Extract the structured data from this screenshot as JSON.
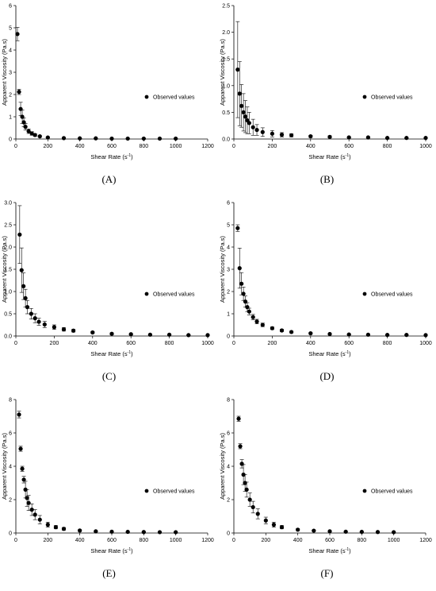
{
  "chart_data": [
    {
      "panel": "A",
      "type": "scatter",
      "caption": "(A)",
      "xlabel": "Shear Rate (s",
      "xlabel_sup": "-1",
      "xlabel_end": ")",
      "ylabel": "Apparent Viscosity (Pa.s)",
      "xlim": [
        0,
        1200
      ],
      "ylim": [
        0,
        6
      ],
      "xticks": [
        "0",
        "200",
        "400",
        "600",
        "800",
        "1000",
        "1200"
      ],
      "yticks": [
        "0",
        "1",
        "2",
        "3",
        "4",
        "5",
        "6"
      ],
      "legend": "Observed values",
      "legend_position": "right-middle",
      "grid": false,
      "series": [
        {
          "name": "Observed values",
          "x": [
            10,
            20,
            30,
            40,
            50,
            60,
            80,
            100,
            120,
            150,
            200,
            300,
            400,
            500,
            600,
            700,
            800,
            900,
            1000
          ],
          "y": [
            4.72,
            2.12,
            1.35,
            1.0,
            0.75,
            0.55,
            0.35,
            0.25,
            0.18,
            0.12,
            0.07,
            0.04,
            0.03,
            0.03,
            0.02,
            0.02,
            0.02,
            0.02,
            0.02
          ],
          "err": [
            0.3,
            0.12,
            0.3,
            0.3,
            0.2,
            0.15,
            0.1,
            0.08,
            0.06,
            0.04,
            0.02,
            0.01,
            0.01,
            0.01,
            0.01,
            0.01,
            0.01,
            0.01,
            0.01
          ]
        }
      ]
    },
    {
      "panel": "B",
      "type": "scatter",
      "caption": "(B)",
      "xlabel": "Shear Rate (s",
      "xlabel_sup": "-1",
      "xlabel_end": ")",
      "ylabel": "Apparent Viscosity (Pa.s)",
      "xlim": [
        0,
        1000
      ],
      "ylim": [
        0,
        2.5
      ],
      "xticks": [
        "0",
        "200",
        "400",
        "600",
        "800",
        "1000"
      ],
      "yticks": [
        "0.0",
        "0.5",
        "1.0",
        "1.5",
        "2.0",
        "2.5"
      ],
      "legend": "Observed values",
      "legend_position": "right-middle",
      "grid": false,
      "series": [
        {
          "name": "Observed values",
          "x": [
            20,
            30,
            40,
            50,
            60,
            70,
            80,
            100,
            120,
            150,
            200,
            250,
            300,
            400,
            500,
            600,
            700,
            800,
            900,
            1000
          ],
          "y": [
            1.3,
            0.85,
            0.62,
            0.5,
            0.42,
            0.35,
            0.3,
            0.22,
            0.17,
            0.13,
            0.1,
            0.08,
            0.07,
            0.05,
            0.04,
            0.03,
            0.03,
            0.02,
            0.02,
            0.02
          ],
          "err": [
            0.9,
            0.6,
            0.4,
            0.35,
            0.3,
            0.25,
            0.2,
            0.15,
            0.1,
            0.08,
            0.06,
            0.04,
            0.03,
            0.02,
            0.02,
            0.01,
            0.01,
            0.01,
            0.01,
            0.01
          ]
        }
      ]
    },
    {
      "panel": "C",
      "type": "scatter",
      "caption": "(C)",
      "xlabel": "Shear Rate (s",
      "xlabel_sup": "-1",
      "xlabel_end": ")",
      "ylabel": "Apparent Viscosity (Pa.s)",
      "xlim": [
        0,
        1000
      ],
      "ylim": [
        0,
        3.0
      ],
      "xticks": [
        "0",
        "200",
        "400",
        "600",
        "800",
        "1000"
      ],
      "yticks": [
        "0.0",
        "0.5",
        "1.0",
        "1.5",
        "2.0",
        "2.5",
        "3.0"
      ],
      "legend": "Observed values",
      "legend_position": "right-middle",
      "grid": false,
      "series": [
        {
          "name": "Observed values",
          "x": [
            20,
            30,
            40,
            50,
            60,
            80,
            100,
            120,
            150,
            200,
            250,
            300,
            400,
            500,
            600,
            700,
            800,
            900,
            1000
          ],
          "y": [
            2.28,
            1.48,
            1.12,
            0.85,
            0.65,
            0.5,
            0.4,
            0.32,
            0.26,
            0.2,
            0.15,
            0.12,
            0.08,
            0.05,
            0.04,
            0.03,
            0.03,
            0.02,
            0.02
          ],
          "err": [
            0.65,
            0.5,
            0.3,
            0.2,
            0.15,
            0.12,
            0.1,
            0.08,
            0.07,
            0.05,
            0.04,
            0.03,
            0.02,
            0.02,
            0.01,
            0.01,
            0.01,
            0.01,
            0.01
          ]
        }
      ]
    },
    {
      "panel": "D",
      "type": "scatter",
      "caption": "(D)",
      "xlabel": "Shear Rate (s",
      "xlabel_sup": "-1",
      "xlabel_end": ")",
      "ylabel": "Apparent Viscosity (Pa.s)",
      "xlim": [
        0,
        1000
      ],
      "ylim": [
        0,
        6
      ],
      "xticks": [
        "0",
        "200",
        "400",
        "600",
        "800",
        "1000"
      ],
      "yticks": [
        "0",
        "1",
        "2",
        "3",
        "4",
        "5",
        "6"
      ],
      "legend": "Observed values",
      "legend_position": "right-middle",
      "grid": false,
      "series": [
        {
          "name": "Observed values",
          "x": [
            20,
            30,
            40,
            50,
            60,
            70,
            80,
            100,
            120,
            150,
            200,
            250,
            300,
            400,
            500,
            600,
            700,
            800,
            900,
            1000
          ],
          "y": [
            4.85,
            3.05,
            2.35,
            1.9,
            1.55,
            1.3,
            1.1,
            0.85,
            0.65,
            0.5,
            0.35,
            0.25,
            0.18,
            0.12,
            0.09,
            0.07,
            0.06,
            0.05,
            0.05,
            0.04
          ],
          "err": [
            0.15,
            0.9,
            0.5,
            0.3,
            0.25,
            0.2,
            0.15,
            0.12,
            0.1,
            0.08,
            0.06,
            0.05,
            0.04,
            0.03,
            0.02,
            0.02,
            0.01,
            0.01,
            0.01,
            0.01
          ]
        }
      ]
    },
    {
      "panel": "E",
      "type": "scatter",
      "caption": "(E)",
      "xlabel": "Shear Rate (s",
      "xlabel_sup": "-1",
      "xlabel_end": ")",
      "ylabel": "Apparent Viscosity (Pa.s)",
      "xlim": [
        0,
        1200
      ],
      "ylim": [
        0,
        8
      ],
      "xticks": [
        "0",
        "200",
        "400",
        "600",
        "800",
        "1000",
        "1200"
      ],
      "yticks": [
        "0",
        "2",
        "4",
        "6",
        "8"
      ],
      "legend": "Observed values",
      "legend_position": "right-middle",
      "grid": false,
      "series": [
        {
          "name": "Observed values",
          "x": [
            20,
            30,
            40,
            50,
            60,
            70,
            80,
            100,
            120,
            150,
            200,
            250,
            300,
            400,
            500,
            600,
            700,
            800,
            900,
            1000
          ],
          "y": [
            7.1,
            5.05,
            3.85,
            3.2,
            2.6,
            2.1,
            1.8,
            1.4,
            1.1,
            0.8,
            0.5,
            0.35,
            0.25,
            0.15,
            0.1,
            0.08,
            0.07,
            0.06,
            0.05,
            0.05
          ],
          "err": [
            0.2,
            0.15,
            0.15,
            0.2,
            0.5,
            0.5,
            0.45,
            0.35,
            0.3,
            0.25,
            0.15,
            0.1,
            0.08,
            0.05,
            0.03,
            0.02,
            0.02,
            0.02,
            0.01,
            0.01
          ]
        }
      ]
    },
    {
      "panel": "F",
      "type": "scatter",
      "caption": "(F)",
      "xlabel": "Shear Rate (s",
      "xlabel_sup": "-1",
      "xlabel_end": ")",
      "ylabel": "Apparent Viscosity (Pa.s)",
      "xlim": [
        0,
        1200
      ],
      "ylim": [
        0,
        8
      ],
      "xticks": [
        "0",
        "200",
        "400",
        "600",
        "800",
        "1000",
        "1200"
      ],
      "yticks": [
        "0",
        "2",
        "4",
        "6",
        "8"
      ],
      "legend": "Observed values",
      "legend_position": "right-middle",
      "grid": false,
      "series": [
        {
          "name": "Observed values",
          "x": [
            30,
            40,
            50,
            60,
            70,
            80,
            100,
            120,
            150,
            200,
            250,
            300,
            400,
            500,
            600,
            700,
            800,
            900,
            1000
          ],
          "y": [
            6.85,
            5.2,
            4.15,
            3.5,
            3.0,
            2.6,
            2.0,
            1.55,
            1.15,
            0.75,
            0.5,
            0.35,
            0.2,
            0.14,
            0.1,
            0.08,
            0.07,
            0.06,
            0.05
          ],
          "err": [
            0.15,
            0.15,
            0.25,
            0.6,
            0.5,
            0.45,
            0.4,
            0.35,
            0.3,
            0.2,
            0.15,
            0.1,
            0.06,
            0.04,
            0.03,
            0.02,
            0.02,
            0.01,
            0.01
          ]
        }
      ]
    }
  ]
}
